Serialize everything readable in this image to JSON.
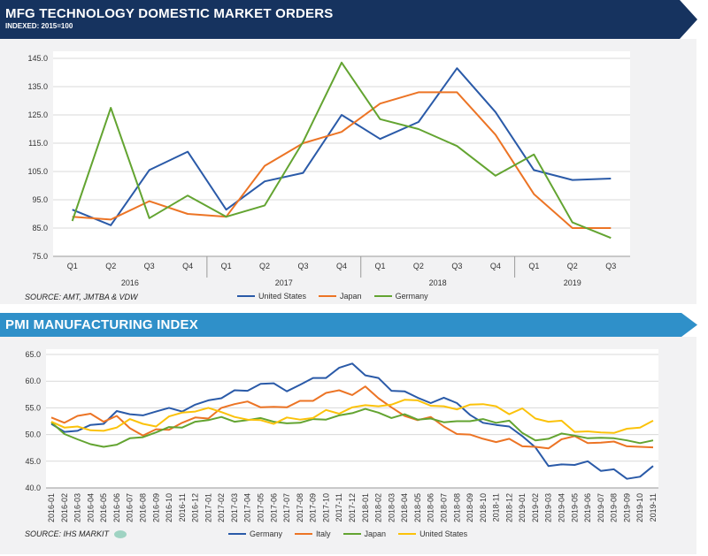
{
  "colors": {
    "banner1": "#16335f",
    "banner2": "#2f90c9",
    "blue": "#2a5aa8",
    "orange": "#ec7425",
    "green": "#63a431",
    "yellow": "#fbc20a"
  },
  "chart_data": [
    {
      "type": "line",
      "title": "MFG TECHNOLOGY DOMESTIC MARKET ORDERS",
      "subtitle": "INDEXED: 2015=100",
      "source": "SOURCE: AMT, JMTBA & VDW",
      "categories": [
        "Q1",
        "Q2",
        "Q3",
        "Q4",
        "Q1",
        "Q2",
        "Q3",
        "Q4",
        "Q1",
        "Q2",
        "Q3",
        "Q4",
        "Q1",
        "Q2",
        "Q3"
      ],
      "years": [
        "2016",
        "2017",
        "2018",
        "2019"
      ],
      "y_ticks": [
        "145.0",
        "135.0",
        "125.0",
        "115.0",
        "105.0",
        "95.0",
        "85.0",
        "75.0"
      ],
      "ylim": [
        75,
        145
      ],
      "series": [
        {
          "name": "United States",
          "color": "blue",
          "values": [
            91.5,
            86,
            105.5,
            112,
            91.5,
            101.5,
            104.5,
            125,
            116.5,
            122.5,
            141.5,
            126,
            105.5,
            102,
            102.5
          ]
        },
        {
          "name": "Japan",
          "color": "orange",
          "values": [
            89,
            88,
            94.5,
            90,
            89,
            107,
            115,
            119,
            129,
            133,
            133,
            118,
            97,
            85,
            85
          ]
        },
        {
          "name": "Germany",
          "color": "green",
          "values": [
            87.5,
            127.5,
            88.5,
            96.5,
            89,
            93,
            115.5,
            143.5,
            123.5,
            120,
            114,
            103.5,
            111,
            87,
            81.5
          ]
        }
      ]
    },
    {
      "type": "line",
      "title": "PMI MANUFACTURING INDEX",
      "source": "SOURCE: IHS MARKIT",
      "categories": [
        "2016-01",
        "2016-02",
        "2016-03",
        "2016-04",
        "2016-05",
        "2016-06",
        "2016-07",
        "2016-08",
        "2016-09",
        "2016-10",
        "2016-11",
        "2016-12",
        "2017-01",
        "2017-02",
        "2017-03",
        "2017-04",
        "2017-05",
        "2017-06",
        "2017-07",
        "2017-08",
        "2017-09",
        "2017-10",
        "2017-11",
        "2017-12",
        "2018-01",
        "2018-02",
        "2018-03",
        "2018-04",
        "2018-05",
        "2018-06",
        "2018-07",
        "2018-08",
        "2018-09",
        "2018-10",
        "2018-11",
        "2018-12",
        "2019-01",
        "2019-02",
        "2019-03",
        "2019-04",
        "2019-05",
        "2019-06",
        "2019-07",
        "2019-08",
        "2019-09",
        "2019-10",
        "2019-11"
      ],
      "y_ticks": [
        "65.0",
        "60.0",
        "55.0",
        "50.0",
        "45.0",
        "40.0"
      ],
      "ylim": [
        40,
        65
      ],
      "series": [
        {
          "name": "Germany",
          "color": "blue",
          "values": [
            52,
            50.5,
            50.7,
            51.8,
            52,
            54.4,
            53.8,
            53.6,
            54.3,
            55,
            54.3,
            55.6,
            56.4,
            56.8,
            58.3,
            58.2,
            59.5,
            59.6,
            58.1,
            59.3,
            60.6,
            60.6,
            62.5,
            63.3,
            61.1,
            60.6,
            58.2,
            58.1,
            56.9,
            55.9,
            56.9,
            55.9,
            53.7,
            52.2,
            51.8,
            51.5,
            49.7,
            47.6,
            44.1,
            44.4,
            44.3,
            45,
            43.2,
            43.5,
            41.7,
            42.1,
            44.1
          ]
        },
        {
          "name": "Italy",
          "color": "orange",
          "values": [
            53.2,
            52.2,
            53.5,
            53.9,
            52.4,
            53.5,
            51.2,
            49.8,
            51,
            50.9,
            52.2,
            53.2,
            53,
            55,
            55.7,
            56.2,
            55.1,
            55.2,
            55.1,
            56.3,
            56.3,
            57.8,
            58.3,
            57.4,
            59,
            56.8,
            55.1,
            53.5,
            52.7,
            53.3,
            51.5,
            50.1,
            50,
            49.2,
            48.6,
            49.2,
            47.8,
            47.7,
            47.4,
            49.1,
            49.7,
            48.4,
            48.5,
            48.7,
            47.8,
            47.7,
            47.6
          ]
        },
        {
          "name": "Japan",
          "color": "green",
          "values": [
            52.3,
            50.1,
            49.1,
            48.2,
            47.7,
            48.1,
            49.3,
            49.5,
            50.4,
            51.4,
            51.3,
            52.4,
            52.7,
            53.3,
            52.4,
            52.7,
            53.1,
            52.4,
            52.1,
            52.2,
            52.9,
            52.8,
            53.6,
            54,
            54.8,
            54.1,
            53.1,
            53.8,
            52.8,
            53,
            52.3,
            52.5,
            52.5,
            52.9,
            52.2,
            52.6,
            50.3,
            48.9,
            49.2,
            50.2,
            49.8,
            49.3,
            49.4,
            49.3,
            48.9,
            48.4,
            48.9
          ]
        },
        {
          "name": "United States",
          "color": "yellow",
          "values": [
            52.4,
            51.3,
            51.5,
            50.8,
            50.7,
            51.3,
            52.9,
            52,
            51.5,
            53.4,
            54.1,
            54.3,
            55,
            54.2,
            53.3,
            52.8,
            52.7,
            52,
            53.2,
            52.8,
            53.1,
            54.6,
            53.9,
            55.1,
            55.5,
            55.3,
            55.6,
            56.5,
            56.4,
            55.4,
            55.3,
            54.7,
            55.6,
            55.7,
            55.3,
            53.8,
            54.9,
            53,
            52.4,
            52.6,
            50.5,
            50.6,
            50.4,
            50.3,
            51.1,
            51.3,
            52.6
          ]
        }
      ]
    }
  ]
}
